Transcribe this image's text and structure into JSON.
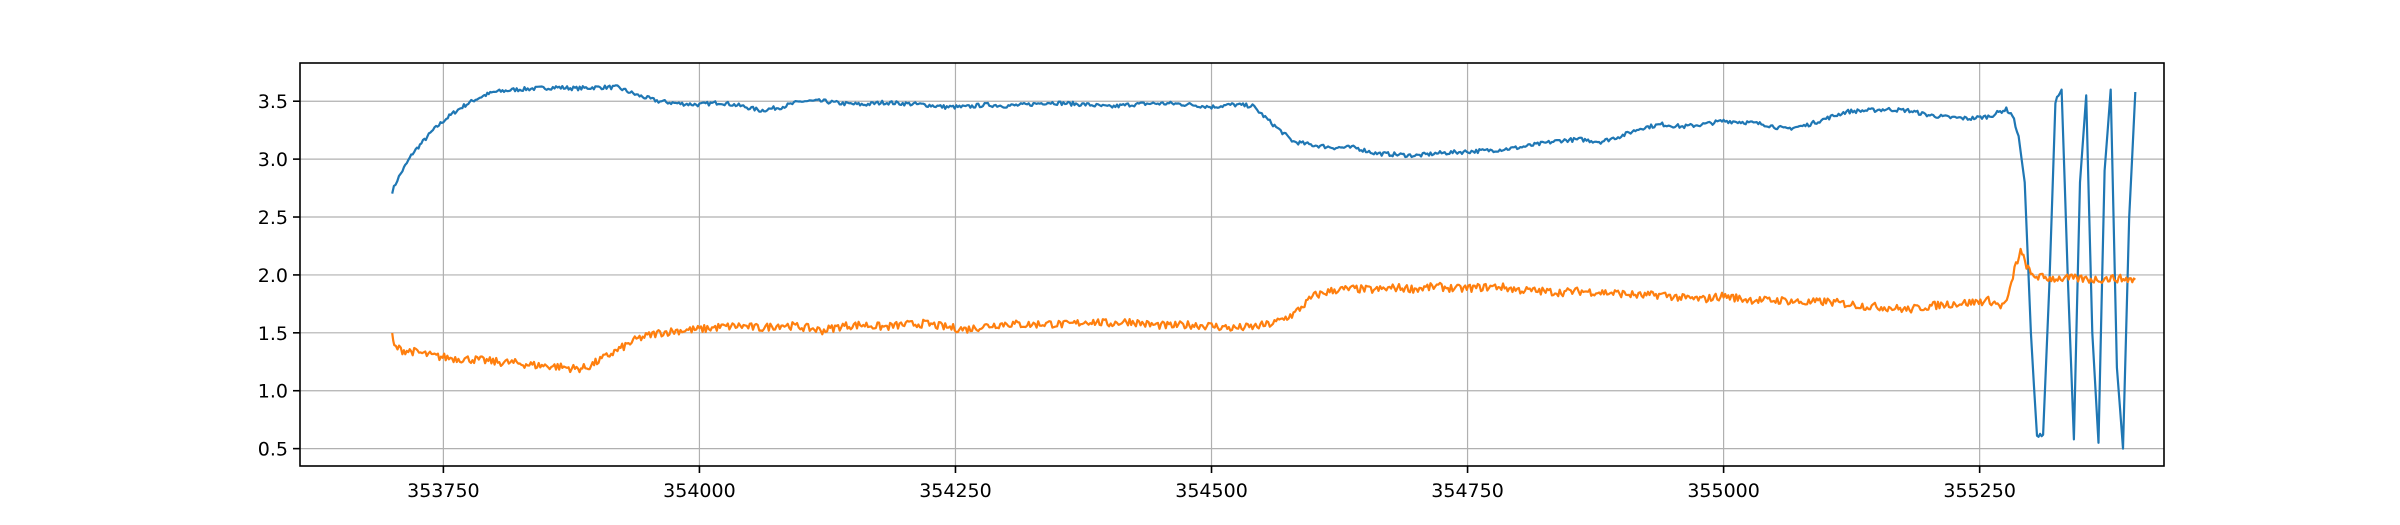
{
  "chart_data": {
    "type": "line",
    "title": "",
    "xlabel": "",
    "ylabel": "",
    "xlim": [
      353610,
      355430
    ],
    "ylim": [
      0.35,
      3.83
    ],
    "grid": true,
    "legend": "none",
    "x_ticks": [
      353750,
      354000,
      354250,
      354500,
      354750,
      355000,
      355250
    ],
    "x_tick_labels": [
      "353750",
      "354000",
      "354250",
      "354500",
      "354750",
      "355000",
      "355250"
    ],
    "y_ticks": [
      0.5,
      1.0,
      1.5,
      2.0,
      2.5,
      3.0,
      3.5
    ],
    "y_tick_labels": [
      "0.5",
      "1.0",
      "1.5",
      "2.0",
      "2.5",
      "3.0",
      "3.5"
    ],
    "series": [
      {
        "color": "#1f77b4",
        "x": [
          353700,
          353705,
          353710,
          353720,
          353730,
          353740,
          353750,
          353760,
          353770,
          353780,
          353790,
          353800,
          353820,
          353840,
          353860,
          353880,
          353900,
          353920,
          353940,
          353960,
          353980,
          354000,
          354020,
          354040,
          354060,
          354080,
          354100,
          354120,
          354140,
          354160,
          354180,
          354200,
          354220,
          354240,
          354260,
          354280,
          354300,
          354320,
          354340,
          354360,
          354380,
          354400,
          354420,
          354440,
          354460,
          354480,
          354500,
          354520,
          354540,
          354560,
          354580,
          354600,
          354620,
          354640,
          354660,
          354680,
          354700,
          354720,
          354740,
          354760,
          354780,
          354800,
          354820,
          354840,
          354860,
          354880,
          354900,
          354920,
          354940,
          354960,
          354980,
          355000,
          355020,
          355040,
          355060,
          355080,
          355100,
          355120,
          355140,
          355160,
          355180,
          355200,
          355220,
          355240,
          355260,
          355270,
          355276,
          355282,
          355288,
          355294,
          355300,
          355306,
          355312,
          355318,
          355324,
          355330,
          355336,
          355342,
          355348,
          355354,
          355360,
          355366,
          355372,
          355378,
          355384,
          355390,
          355396,
          355402
        ],
        "y": [
          2.72,
          2.82,
          2.9,
          3.05,
          3.15,
          3.25,
          3.33,
          3.4,
          3.46,
          3.51,
          3.55,
          3.58,
          3.6,
          3.61,
          3.62,
          3.61,
          3.62,
          3.62,
          3.55,
          3.5,
          3.48,
          3.47,
          3.49,
          3.46,
          3.42,
          3.45,
          3.5,
          3.5,
          3.48,
          3.47,
          3.49,
          3.48,
          3.47,
          3.45,
          3.45,
          3.47,
          3.46,
          3.47,
          3.49,
          3.48,
          3.47,
          3.45,
          3.47,
          3.48,
          3.48,
          3.47,
          3.45,
          3.47,
          3.46,
          3.3,
          3.15,
          3.12,
          3.1,
          3.1,
          3.05,
          3.04,
          3.03,
          3.05,
          3.06,
          3.07,
          3.08,
          3.1,
          3.13,
          3.16,
          3.17,
          3.15,
          3.2,
          3.27,
          3.3,
          3.28,
          3.3,
          3.33,
          3.32,
          3.3,
          3.26,
          3.29,
          3.35,
          3.41,
          3.42,
          3.43,
          3.42,
          3.38,
          3.36,
          3.35,
          3.37,
          3.41,
          3.43,
          3.38,
          3.2,
          2.8,
          1.5,
          0.6,
          0.62,
          1.9,
          3.5,
          3.6,
          2.0,
          0.58,
          2.8,
          3.55,
          1.5,
          0.55,
          2.9,
          3.6,
          1.2,
          0.5,
          2.5,
          3.58
        ],
        "name": ""
      },
      {
        "color": "#ff7f0e",
        "x": [
          353700,
          353702,
          353710,
          353720,
          353740,
          353760,
          353780,
          353800,
          353820,
          353840,
          353860,
          353880,
          353890,
          353900,
          353920,
          353940,
          353960,
          353980,
          354000,
          354020,
          354040,
          354060,
          354080,
          354100,
          354120,
          354140,
          354160,
          354180,
          354200,
          354220,
          354240,
          354260,
          354280,
          354300,
          354320,
          354340,
          354360,
          354380,
          354400,
          354420,
          354440,
          354460,
          354480,
          354500,
          354520,
          354540,
          354560,
          354580,
          354600,
          354620,
          354640,
          354660,
          354680,
          354700,
          354720,
          354740,
          354760,
          354780,
          354800,
          354820,
          354840,
          354860,
          354880,
          354900,
          354920,
          354940,
          354960,
          354980,
          355000,
          355020,
          355040,
          355060,
          355080,
          355100,
          355120,
          355140,
          355160,
          355180,
          355200,
          355220,
          355240,
          355260,
          355266,
          355272,
          355278,
          355284,
          355290,
          355300,
          355310,
          355320,
          355340,
          355360,
          355380,
          355402
        ],
        "y": [
          1.47,
          1.38,
          1.35,
          1.34,
          1.3,
          1.28,
          1.27,
          1.25,
          1.24,
          1.22,
          1.21,
          1.19,
          1.2,
          1.25,
          1.35,
          1.45,
          1.5,
          1.52,
          1.53,
          1.55,
          1.56,
          1.54,
          1.57,
          1.55,
          1.52,
          1.56,
          1.57,
          1.55,
          1.57,
          1.58,
          1.55,
          1.53,
          1.56,
          1.58,
          1.57,
          1.58,
          1.57,
          1.6,
          1.58,
          1.6,
          1.57,
          1.56,
          1.57,
          1.56,
          1.54,
          1.55,
          1.58,
          1.66,
          1.82,
          1.87,
          1.88,
          1.87,
          1.89,
          1.88,
          1.9,
          1.88,
          1.89,
          1.9,
          1.87,
          1.86,
          1.85,
          1.86,
          1.85,
          1.84,
          1.82,
          1.83,
          1.8,
          1.79,
          1.82,
          1.79,
          1.78,
          1.78,
          1.76,
          1.77,
          1.75,
          1.73,
          1.72,
          1.7,
          1.73,
          1.75,
          1.76,
          1.78,
          1.75,
          1.73,
          1.8,
          2.05,
          2.2,
          2.0,
          1.98,
          1.97,
          1.97,
          1.96,
          1.97,
          1.96
        ],
        "name": ""
      }
    ]
  }
}
